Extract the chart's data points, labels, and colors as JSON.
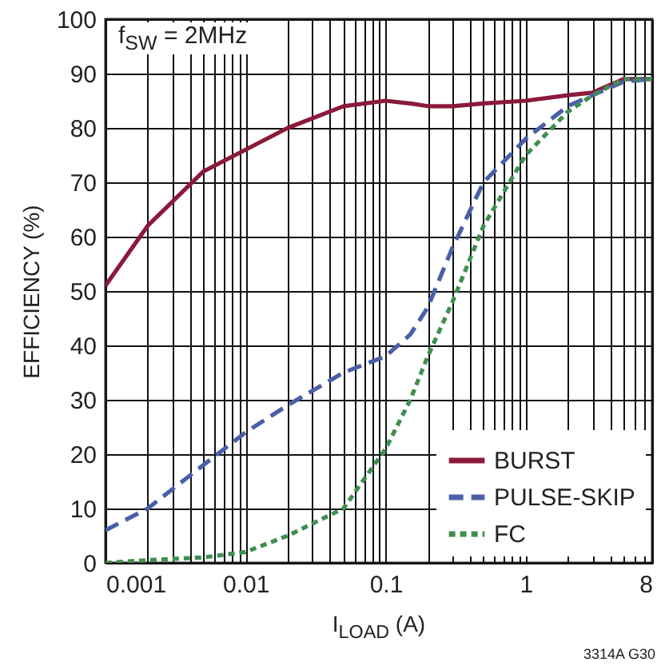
{
  "chart_data": {
    "type": "line",
    "title": "f$_{SW}$ = 2MHz",
    "xlabel": "I$_{LOAD}$ (A)",
    "ylabel": "EFFICIENCY (%)",
    "annotations": [
      "3314A G30"
    ],
    "x": [
      0.001,
      0.002,
      0.005,
      0.01,
      0.02,
      0.05,
      0.1,
      0.15,
      0.2,
      0.3,
      0.5,
      1,
      2,
      3,
      5,
      8
    ],
    "series": [
      {
        "name": "BURST",
        "color": "#8b1a3a",
        "line_style": "solid",
        "values": [
          51,
          62,
          72,
          76,
          80,
          84,
          85,
          84.5,
          84,
          84,
          84.5,
          85,
          86,
          86.5,
          89,
          89
        ]
      },
      {
        "name": "PULSE-SKIP",
        "color": "#4a5fa8",
        "line_style": "dashed",
        "values": [
          6,
          10,
          18,
          24,
          29,
          35,
          38,
          42,
          47,
          58,
          70,
          78,
          84,
          86,
          88.5,
          89
        ]
      },
      {
        "name": "FC",
        "color": "#3f8f4f",
        "line_style": "dotted",
        "values": [
          0,
          0.5,
          1,
          2,
          5,
          10,
          21,
          30,
          38,
          48,
          62,
          75,
          83,
          86,
          89,
          89
        ]
      }
    ],
    "log": "x",
    "xlim": [
      0.001,
      8
    ],
    "ylim": [
      0,
      100
    ],
    "xticks": [
      0.001,
      {
        "value": 0.002,
        "label": null
      },
      {
        "value": 0.003,
        "label": null
      },
      {
        "value": 0.004,
        "label": null
      },
      {
        "value": 0.005,
        "label": null
      },
      {
        "value": 0.006,
        "label": null
      },
      {
        "value": 0.007,
        "label": null
      },
      {
        "value": 0.008,
        "label": null
      },
      {
        "value": 0.009,
        "label": null
      },
      0.01,
      {
        "value": 0.02,
        "label": null
      },
      {
        "value": 0.03,
        "label": null
      },
      {
        "value": 0.04,
        "label": null
      },
      {
        "value": 0.05,
        "label": null
      },
      {
        "value": 0.06,
        "label": null
      },
      {
        "value": 0.07,
        "label": null
      },
      {
        "value": 0.08,
        "label": null
      },
      {
        "value": 0.09,
        "label": null
      },
      0.1,
      {
        "value": 0.2,
        "label": null
      },
      {
        "value": 0.3,
        "label": null
      },
      {
        "value": 0.4,
        "label": null
      },
      {
        "value": 0.5,
        "label": null
      },
      {
        "value": 0.6,
        "label": null
      },
      {
        "value": 0.7,
        "label": null
      },
      {
        "value": 0.8,
        "label": null
      },
      {
        "value": 0.9,
        "label": null
      },
      1,
      {
        "value": 2,
        "label": null
      },
      {
        "value": 3,
        "label": null
      },
      {
        "value": 4,
        "label": null
      },
      {
        "value": 5,
        "label": null
      },
      {
        "value": 6,
        "label": null
      },
      {
        "value": 7,
        "label": null
      },
      8
    ],
    "yticks": [
      0,
      10,
      20,
      30,
      40,
      50,
      60,
      70,
      80,
      90,
      100
    ],
    "grid": true,
    "legend": "bottom right"
  }
}
